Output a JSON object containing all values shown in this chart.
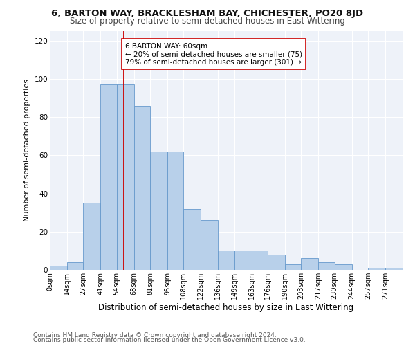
{
  "title": "6, BARTON WAY, BRACKLESHAM BAY, CHICHESTER, PO20 8JD",
  "subtitle": "Size of property relative to semi-detached houses in East Wittering",
  "xlabel": "Distribution of semi-detached houses by size in East Wittering",
  "ylabel": "Number of semi-detached properties",
  "bar_color": "#b8d0ea",
  "bar_edge_color": "#6699cc",
  "annotation_line_color": "#cc0000",
  "annotation_box_color": "#cc0000",
  "annotation_text": "6 BARTON WAY: 60sqm\n← 20% of semi-detached houses are smaller (75)\n79% of semi-detached houses are larger (301) →",
  "footer1": "Contains HM Land Registry data © Crown copyright and database right 2024.",
  "footer2": "Contains public sector information licensed under the Open Government Licence v3.0.",
  "bins": [
    0,
    14,
    27,
    41,
    54,
    68,
    81,
    95,
    108,
    122,
    136,
    149,
    163,
    176,
    190,
    203,
    217,
    230,
    244,
    257,
    271,
    285
  ],
  "counts": [
    2,
    4,
    35,
    97,
    97,
    86,
    62,
    62,
    32,
    26,
    10,
    10,
    10,
    8,
    3,
    6,
    4,
    3,
    0,
    1,
    1
  ],
  "tick_labels": [
    "0sqm",
    "14sqm",
    "27sqm",
    "41sqm",
    "54sqm",
    "68sqm",
    "81sqm",
    "95sqm",
    "108sqm",
    "122sqm",
    "136sqm",
    "149sqm",
    "163sqm",
    "176sqm",
    "190sqm",
    "203sqm",
    "217sqm",
    "230sqm",
    "244sqm",
    "257sqm",
    "271sqm"
  ],
  "property_size": 60,
  "ylim": [
    0,
    125
  ],
  "yticks": [
    0,
    20,
    40,
    60,
    80,
    100,
    120
  ],
  "background_color": "#eef2f9",
  "fig_background": "#ffffff",
  "grid_color": "#ffffff",
  "title_fontsize": 9.5,
  "subtitle_fontsize": 8.5,
  "xlabel_fontsize": 8.5,
  "ylabel_fontsize": 8,
  "tick_fontsize": 7,
  "annotation_fontsize": 7.5,
  "footer_fontsize": 6.5
}
